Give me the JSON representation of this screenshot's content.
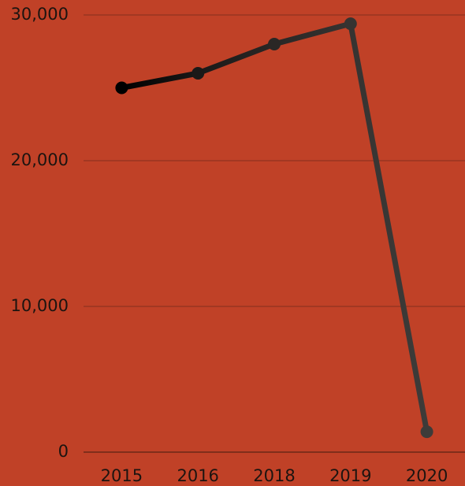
{
  "chart_data": {
    "type": "line",
    "categories": [
      "2015",
      "2016",
      "2018",
      "2019",
      "2020"
    ],
    "series": [
      {
        "values": [
          25000,
          26000,
          28000,
          29400,
          1400
        ],
        "point_colors": [
          "#000000",
          "#1b1918",
          "#2a2725",
          "#363331",
          "#3d3b39"
        ]
      }
    ],
    "ylim": [
      0,
      30000
    ],
    "yticks": [
      0,
      {
        "value": 10000,
        "label": "10,000"
      },
      {
        "value": 20000,
        "label": "20,000"
      },
      {
        "value": 30000,
        "label": "30,000"
      }
    ],
    "grid": true
  }
}
